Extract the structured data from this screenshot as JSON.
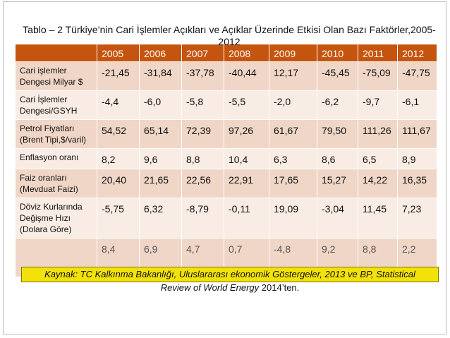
{
  "title": "Tablo – 2 Türkiye’nin Cari İşlemler Açıkları ve Açıklar Üzerinde Etkisi Olan  Bazı Faktörler,2005-2012",
  "table": {
    "years": [
      "2005",
      "2006",
      "2007",
      "2008",
      "2009",
      "2010",
      "2011",
      "2012"
    ],
    "rows": [
      {
        "label": "Cari işlemler Dengesi Milyar $",
        "values": [
          "-21,45",
          "-31,84",
          "-37,78",
          "-40,44",
          "12,17",
          "-45,45",
          "-75,09",
          "-47,75"
        ]
      },
      {
        "label": "Cari İşlemler Dengesi/GSYH",
        "values": [
          "-4,4",
          "-6,0",
          "-5,8",
          "-5,5",
          "-2,0",
          "-6,2",
          "-9,7",
          "-6,1"
        ]
      },
      {
        "label": "Petrol Fiyatları (Brent Tipi,$/varil)",
        "values": [
          "54,52",
          "65,14",
          "72,39",
          "97,26",
          "61,67",
          "79,50",
          "111,26",
          "111,67"
        ]
      },
      {
        "label": "Enflasyon oranı",
        "values": [
          "8,2",
          "9,6",
          "8,8",
          "10,4",
          "6,3",
          "8,6",
          "6,5",
          "8,9"
        ]
      },
      {
        "label": "Faiz oranları (Mevduat Faizi)",
        "values": [
          "20,40",
          "21,65",
          "22,56",
          "22,91",
          "17,65",
          "15,27",
          "14,22",
          "16,35"
        ]
      },
      {
        "label": "Döviz Kurlarında Değişme Hızı (Dolara Göre)",
        "values": [
          "-5,75",
          "6,32",
          "-8,79",
          "-0,11",
          "19,09",
          "-3,04",
          "11,45",
          "7,23"
        ]
      }
    ],
    "last_row_values": [
      "8,4",
      "6,9",
      "4,7",
      "0,7",
      "-4,8",
      "9,2",
      "8,8",
      "2,2"
    ]
  },
  "source": {
    "line1": "Kaynak: TC Kalkınma Bakanlığı, Uluslararası ekonomik Göstergeler, 2013 ve BP, Statistical",
    "line2_italic": "Review of World Energy",
    "line2_plain": " 2014’ten."
  },
  "colors": {
    "header": "#c5540e",
    "row_odd": "#f0d6c7",
    "row_even": "#f8ece4",
    "source_bg": "#f2e20a"
  }
}
